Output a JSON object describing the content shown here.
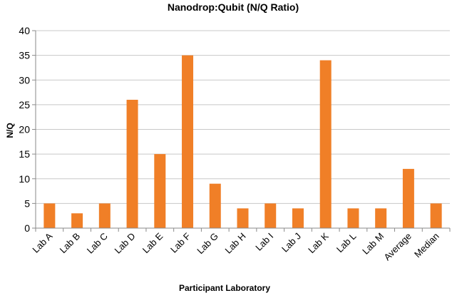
{
  "chart_data": {
    "type": "bar",
    "title": "Nanodrop:Qubit (N/Q Ratio)",
    "xlabel": "Participant Laboratory",
    "ylabel": "N/Q",
    "ylim": [
      0,
      40
    ],
    "yticks": [
      0,
      5,
      10,
      15,
      20,
      25,
      30,
      35,
      40
    ],
    "grid": true,
    "categories": [
      "Lab A",
      "Lab B",
      "Lab C",
      "Lab D",
      "Lab E",
      "Lab F",
      "Lab G",
      "Lab H",
      "Lab I",
      "Lab J",
      "Lab K",
      "Lab L",
      "Lab M",
      "Average",
      "Median"
    ],
    "values": [
      5,
      3,
      5,
      26,
      15,
      35,
      9,
      4,
      5,
      4,
      34,
      4,
      4,
      12,
      5
    ],
    "colors": {
      "bar": "#f07f27",
      "grid": "#c8c8c8",
      "axis": "#8a8a8a"
    }
  }
}
